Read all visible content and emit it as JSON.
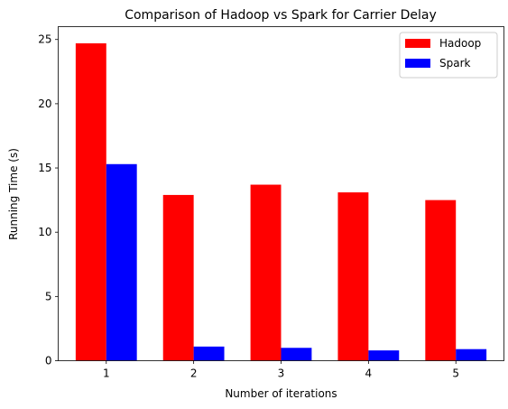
{
  "chart_data": {
    "type": "bar",
    "title": "Comparison of Hadoop vs Spark for Carrier Delay",
    "xlabel": "Number of iterations",
    "ylabel": "Running Time (s)",
    "categories": [
      "1",
      "2",
      "3",
      "4",
      "5"
    ],
    "ylim": [
      0,
      26
    ],
    "yticks": [
      0,
      5,
      10,
      15,
      20,
      25
    ],
    "grid": false,
    "legend_position": "top-right",
    "series": [
      {
        "name": "Hadoop",
        "color": "#ff0000",
        "values": [
          24.7,
          12.9,
          13.7,
          13.1,
          12.5
        ]
      },
      {
        "name": "Spark",
        "color": "#0000ff",
        "values": [
          15.3,
          1.1,
          1.0,
          0.8,
          0.9
        ]
      }
    ]
  }
}
